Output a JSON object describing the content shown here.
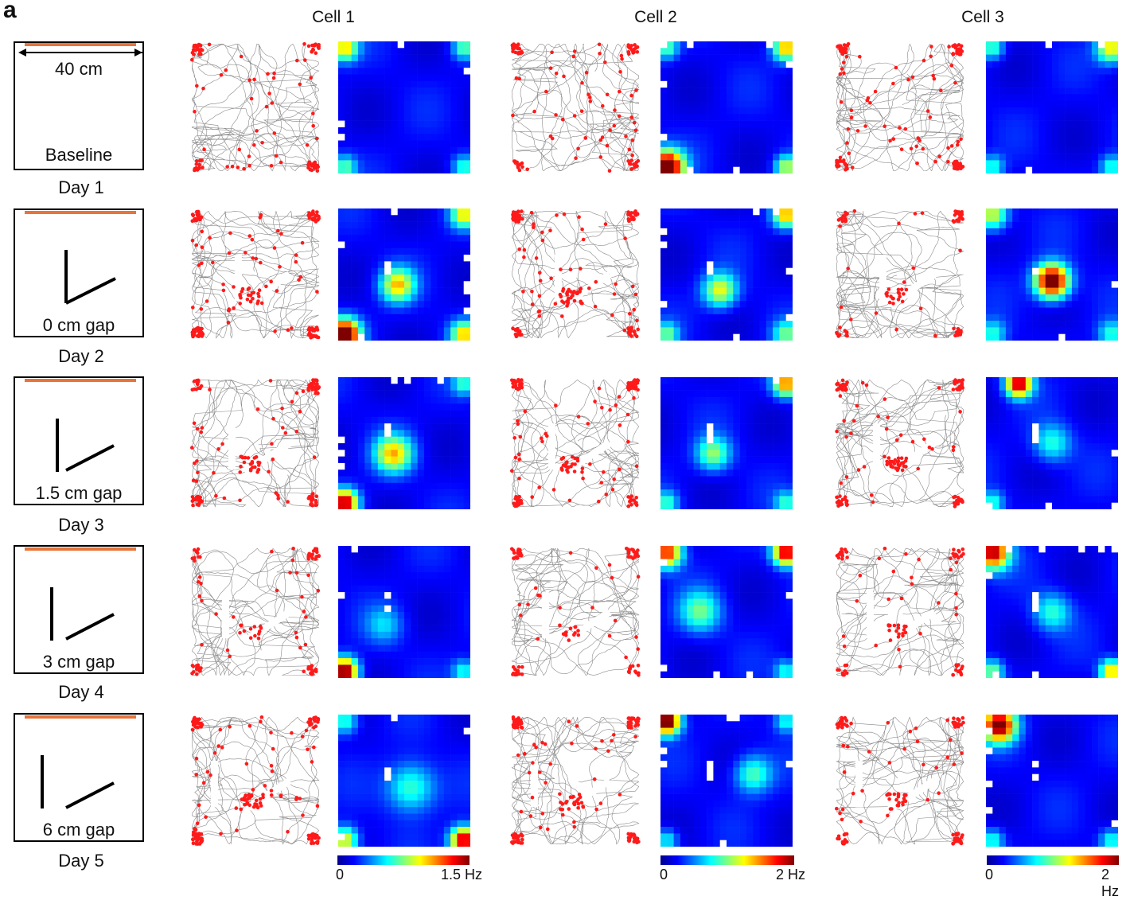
{
  "figure": {
    "panel_label": "a",
    "cells": [
      {
        "title": "Cell 1",
        "cbar_min": "0",
        "cbar_max": "1.5 Hz"
      },
      {
        "title": "Cell 2",
        "cbar_min": "0",
        "cbar_max": "2 Hz"
      },
      {
        "title": "Cell 3",
        "cbar_min": "0",
        "cbar_max": "2 Hz"
      }
    ],
    "rows": [
      {
        "day": "Day 1",
        "env_label": "Baseline",
        "scale_label": "40 cm",
        "gap_cm": null
      },
      {
        "day": "Day 2",
        "env_label": "0 cm gap",
        "gap_cm": 0
      },
      {
        "day": "Day 3",
        "env_label": "1.5 cm gap",
        "gap_cm": 1.5
      },
      {
        "day": "Day 4",
        "env_label": "3 cm gap",
        "gap_cm": 3
      },
      {
        "day": "Day 5",
        "env_label": "6 cm gap",
        "gap_cm": 6
      }
    ],
    "colors": {
      "cue_bar": "#e8743b",
      "trajectory": "#8a8a8a",
      "spike": "#ff1a1a",
      "colormap": [
        "#00008f",
        "#0000ff",
        "#007fff",
        "#00ffff",
        "#7fff7f",
        "#ffff00",
        "#ff7f00",
        "#ff0000",
        "#7f0000"
      ]
    }
  }
}
